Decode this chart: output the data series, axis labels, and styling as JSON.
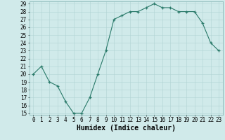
{
  "x": [
    0,
    1,
    2,
    3,
    4,
    5,
    6,
    7,
    8,
    9,
    10,
    11,
    12,
    13,
    14,
    15,
    16,
    17,
    18,
    19,
    20,
    21,
    22,
    23
  ],
  "y": [
    20.0,
    21.0,
    19.0,
    18.5,
    16.5,
    15.0,
    15.0,
    17.0,
    20.0,
    23.0,
    27.0,
    27.5,
    28.0,
    28.0,
    28.5,
    29.0,
    28.5,
    28.5,
    28.0,
    28.0,
    28.0,
    26.5,
    24.0,
    23.0
  ],
  "xlabel": "Humidex (Indice chaleur)",
  "ylim_min": 15,
  "ylim_max": 29,
  "xlim_min": 0,
  "xlim_max": 23,
  "yticks": [
    15,
    16,
    17,
    18,
    19,
    20,
    21,
    22,
    23,
    24,
    25,
    26,
    27,
    28,
    29
  ],
  "xticks": [
    0,
    1,
    2,
    3,
    4,
    5,
    6,
    7,
    8,
    9,
    10,
    11,
    12,
    13,
    14,
    15,
    16,
    17,
    18,
    19,
    20,
    21,
    22,
    23
  ],
  "line_color": "#2a7a6a",
  "bg_color": "#d0eaea",
  "grid_color": "#b0d4d4",
  "xlabel_fontsize": 7,
  "tick_fontsize": 5.5
}
